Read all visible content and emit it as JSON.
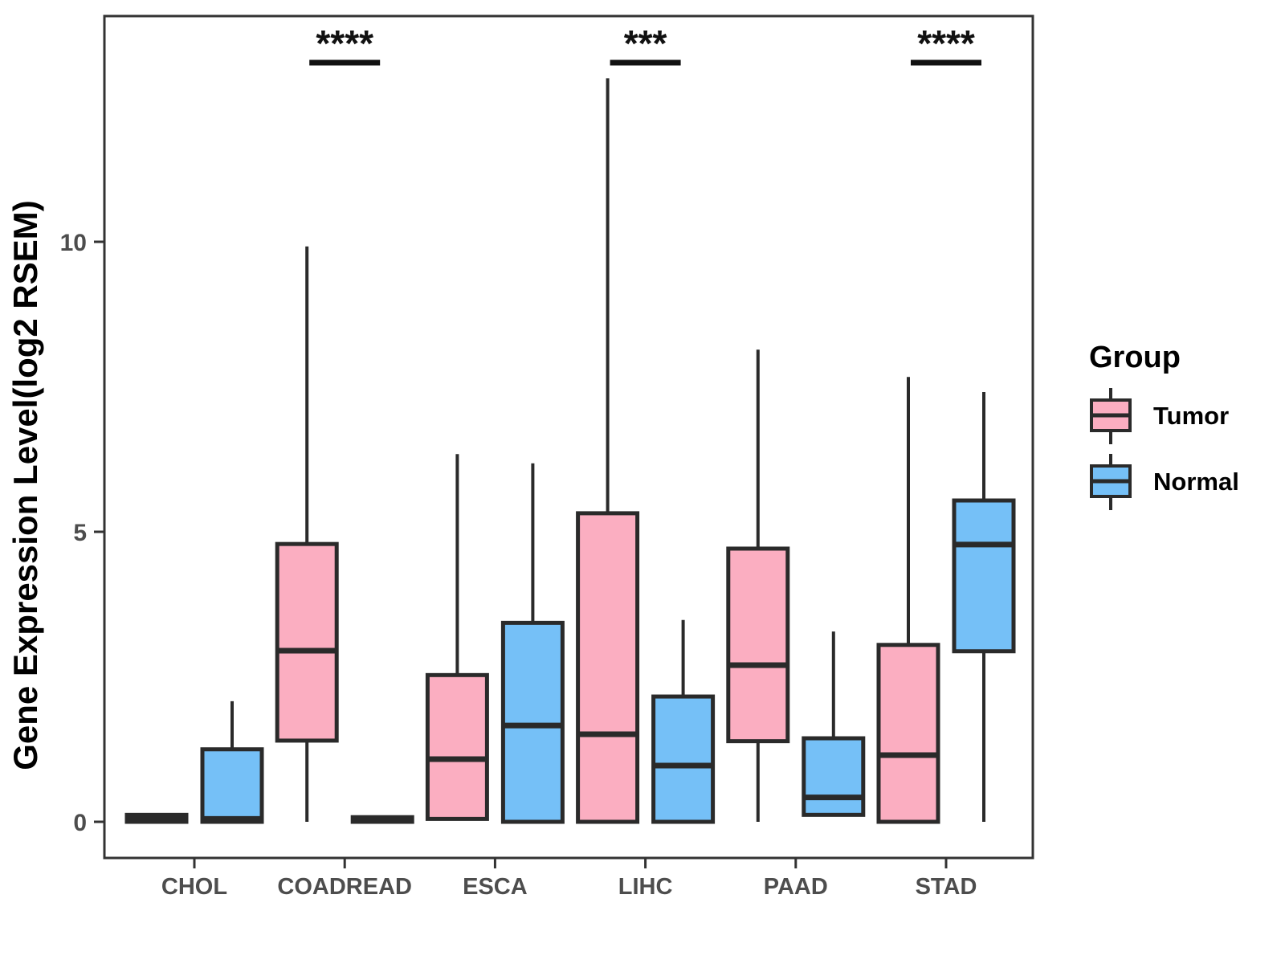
{
  "chart_data": {
    "type": "boxplot",
    "title": "",
    "xlabel": "",
    "ylabel": "Gene Expression Level(log2 RSEM)",
    "ylim": [
      -0.62,
      13.9
    ],
    "yticks": [
      0,
      5,
      10
    ],
    "grid": "off",
    "legend_position": "right",
    "legend_title": "Group",
    "categories": [
      "CHOL",
      "COADREAD",
      "ESCA",
      "LIHC",
      "PAAD",
      "STAD"
    ],
    "box_value_order": [
      "whisker_low",
      "q1",
      "median",
      "q3",
      "whisker_high"
    ],
    "series": [
      {
        "name": "Tumor",
        "color": "#FBAEC1",
        "boxes": [
          [
            0,
            0,
            0.06,
            0.12,
            0.12
          ],
          [
            0,
            1.4,
            2.95,
            4.79,
            9.92
          ],
          [
            0.05,
            0.05,
            1.08,
            2.53,
            6.34
          ],
          [
            0,
            0,
            1.51,
            5.32,
            12.82
          ],
          [
            0,
            1.39,
            2.7,
            4.71,
            8.14
          ],
          [
            0,
            0,
            1.15,
            3.05,
            7.67
          ]
        ]
      },
      {
        "name": "Normal",
        "color": "#75C0F7",
        "boxes": [
          [
            0,
            0,
            0.05,
            1.25,
            2.08
          ],
          [
            0,
            0,
            0.03,
            0.08,
            0.08
          ],
          [
            0,
            0,
            1.66,
            3.43,
            6.18
          ],
          [
            0,
            0,
            0.97,
            2.16,
            3.48
          ],
          [
            0.12,
            0.12,
            0.42,
            1.44,
            3.28
          ],
          [
            0,
            2.94,
            4.78,
            5.54,
            7.41
          ]
        ]
      }
    ],
    "significance": [
      {
        "category": "COADREAD",
        "label": "****"
      },
      {
        "category": "LIHC",
        "label": "***"
      },
      {
        "category": "STAD",
        "label": "****"
      }
    ]
  }
}
